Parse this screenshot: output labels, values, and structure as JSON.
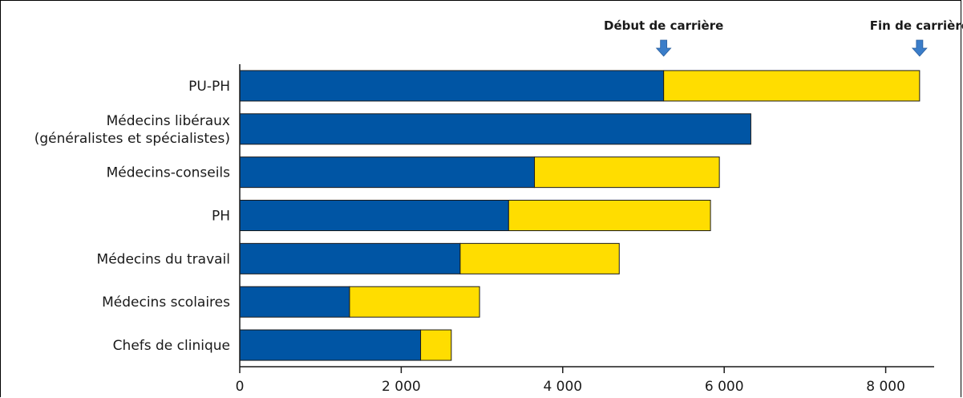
{
  "chart_data": {
    "type": "bar",
    "orientation": "horizontal",
    "stacked": true,
    "categories": [
      [
        "PU-PH"
      ],
      [
        "Médecins libéraux",
        "(généralistes et spécialistes)"
      ],
      [
        "Médecins-conseils"
      ],
      [
        "PH"
      ],
      [
        "Médecins du travail"
      ],
      [
        "Médecins scolaires"
      ],
      [
        "Chefs de clinique"
      ]
    ],
    "series": [
      {
        "name": "Début de carrière",
        "color": "#0055a4",
        "values": [
          5250,
          6330,
          3650,
          3330,
          2730,
          1360,
          2240
        ]
      },
      {
        "name": "Fin de carrière",
        "color": "#ffdd00",
        "values": [
          3170,
          0,
          2290,
          2500,
          1970,
          1610,
          380
        ]
      }
    ],
    "xlim": [
      0,
      8600
    ],
    "xticks": [
      0,
      2000,
      4000,
      6000,
      8000
    ],
    "xtick_labels": [
      "0",
      "2 000",
      "4 000",
      "6 000",
      "8 000"
    ],
    "legend": {
      "markers": [
        {
          "label": "Début de carrière",
          "at_value": 5250
        },
        {
          "label": "Fin de carrière",
          "at_value": 8420
        }
      ],
      "marker_color": "#3a7dc9"
    },
    "grid": false
  }
}
